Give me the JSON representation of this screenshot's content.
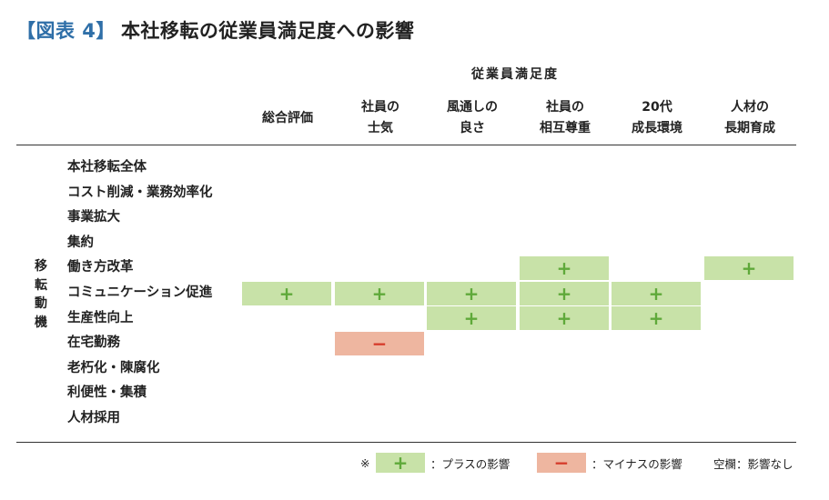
{
  "title": {
    "tag": "【図表 4】",
    "main": "本社移転の従業員満足度への影響"
  },
  "group_header": "従業員満足度",
  "columns": [
    "総合評価",
    "社員の\n士気",
    "風通しの\n良さ",
    "社員の\n相互尊重",
    "20代\n成長環境",
    "人材の\n長期育成"
  ],
  "side_label": "移\n転\n動\n機",
  "rows": [
    {
      "label": "本社移転全体",
      "cells": [
        "",
        "",
        "",
        "",
        "",
        ""
      ]
    },
    {
      "label": "コスト削減・業務効率化",
      "cells": [
        "",
        "",
        "",
        "",
        "",
        ""
      ]
    },
    {
      "label": "事業拡大",
      "cells": [
        "",
        "",
        "",
        "",
        "",
        ""
      ]
    },
    {
      "label": "集約",
      "cells": [
        "",
        "",
        "",
        "",
        "",
        ""
      ]
    },
    {
      "label": "働き方改革",
      "cells": [
        "",
        "",
        "",
        "+",
        "",
        "+"
      ]
    },
    {
      "label": "コミュニケーション促進",
      "cells": [
        "+",
        "+",
        "+",
        "+",
        "+",
        ""
      ]
    },
    {
      "label": "生産性向上",
      "cells": [
        "",
        "",
        "+",
        "+",
        "+",
        ""
      ]
    },
    {
      "label": "在宅勤務",
      "cells": [
        "",
        "−",
        "",
        "",
        "",
        ""
      ]
    },
    {
      "label": "老朽化・陳腐化",
      "cells": [
        "",
        "",
        "",
        "",
        "",
        ""
      ]
    },
    {
      "label": "利便性・集積",
      "cells": [
        "",
        "",
        "",
        "",
        "",
        ""
      ]
    },
    {
      "label": "人材採用",
      "cells": [
        "",
        "",
        "",
        "",
        "",
        ""
      ]
    }
  ],
  "legend": {
    "note_mark": "※",
    "plus_symbol": "+",
    "plus_text": "：プラスの影響",
    "minus_symbol": "−",
    "minus_text": "：マイナスの影響",
    "blank_text": "空欄：影響なし"
  },
  "colors": {
    "plus_bg": "#c8e2a8",
    "plus_fg": "#5fa93a",
    "minus_bg": "#eeb6a0",
    "minus_fg": "#d63b2a",
    "title_tag": "#2f6fa8"
  }
}
